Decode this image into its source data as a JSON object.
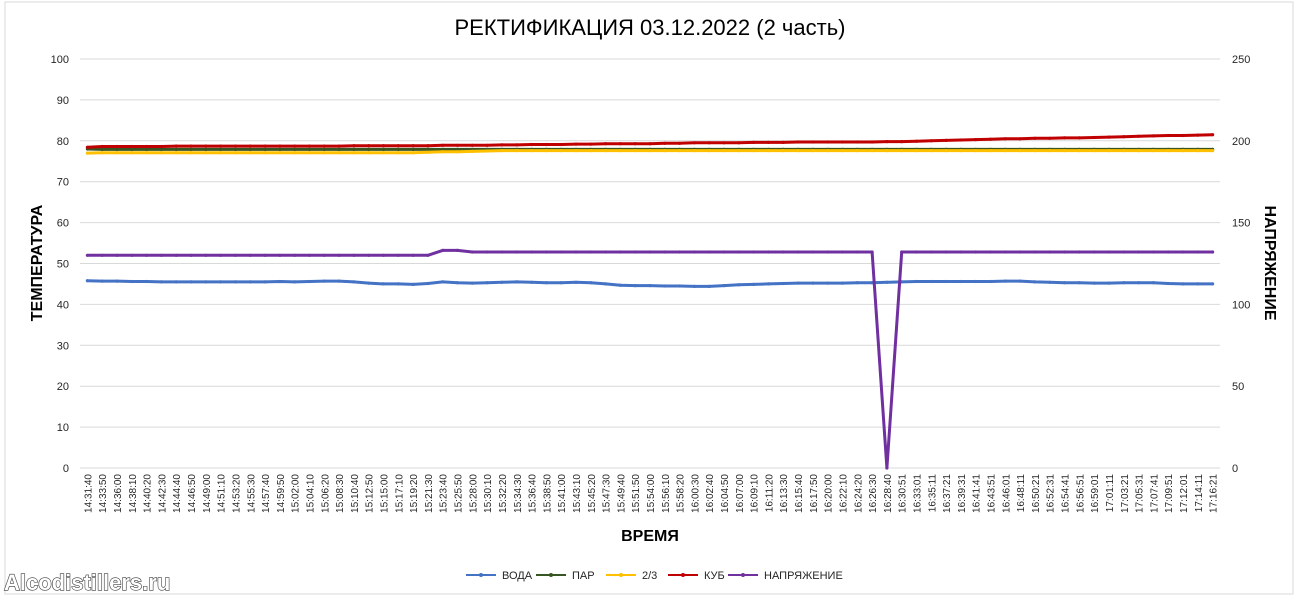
{
  "watermark": "Alcodistillers.ru",
  "chart_data": {
    "type": "line",
    "title": "РЕКТИФИКАЦИЯ 03.12.2022 (2 часть)",
    "xlabel": "ВРЕМЯ",
    "ylabel": "ТЕМПЕРАТУРА",
    "y2label": "НАПРЯЖЕНИЕ",
    "ylim": [
      0,
      100
    ],
    "y2lim": [
      0,
      250
    ],
    "yticks": [
      "0",
      "10",
      "20",
      "30",
      "40",
      "50",
      "60",
      "70",
      "80",
      "90",
      "100"
    ],
    "y2ticks": [
      "0",
      "50",
      "100",
      "150",
      "200",
      "250"
    ],
    "grid": true,
    "legend_position": "bottom",
    "categories": [
      "14:31:40",
      "14:33:50",
      "14:36:00",
      "14:38:10",
      "14:40:20",
      "14:42:30",
      "14:44:40",
      "14:46:50",
      "14:49:00",
      "14:51:10",
      "14:53:20",
      "14:55:30",
      "14:57:40",
      "14:59:50",
      "15:02:00",
      "15:04:10",
      "15:06:20",
      "15:08:30",
      "15:10:40",
      "15:12:50",
      "15:15:00",
      "15:17:10",
      "15:19:20",
      "15:21:30",
      "15:23:40",
      "15:25:50",
      "15:28:00",
      "15:30:10",
      "15:32:20",
      "15:34:30",
      "15:36:40",
      "15:38:50",
      "15:41:00",
      "15:43:10",
      "15:45:20",
      "15:47:30",
      "15:49:40",
      "15:51:50",
      "15:54:00",
      "15:56:10",
      "15:58:20",
      "16:00:30",
      "16:02:40",
      "16:04:50",
      "16:07:00",
      "16:09:10",
      "16:11:20",
      "16:13:30",
      "16:15:40",
      "16:17:50",
      "16:20:00",
      "16:22:10",
      "16:24:20",
      "16:26:30",
      "16:28:40",
      "16:30:51",
      "16:33:01",
      "16:35:11",
      "16:37:21",
      "16:39:31",
      "16:41:41",
      "16:43:51",
      "16:46:01",
      "16:48:11",
      "16:50:21",
      "16:52:31",
      "16:54:41",
      "16:56:51",
      "16:59:01",
      "17:01:11",
      "17:03:21",
      "17:05:31",
      "17:07:41",
      "17:09:51",
      "17:12:01",
      "17:14:11",
      "17:16:21"
    ],
    "series": [
      {
        "name": "ВОДА",
        "axis": "left",
        "color": "#4472c4",
        "values": [
          45.8,
          45.7,
          45.7,
          45.6,
          45.6,
          45.5,
          45.5,
          45.5,
          45.5,
          45.5,
          45.5,
          45.5,
          45.5,
          45.6,
          45.5,
          45.6,
          45.7,
          45.7,
          45.5,
          45.2,
          45.0,
          45.0,
          44.9,
          45.1,
          45.5,
          45.3,
          45.2,
          45.3,
          45.4,
          45.5,
          45.4,
          45.3,
          45.3,
          45.4,
          45.3,
          45.0,
          44.7,
          44.6,
          44.6,
          44.5,
          44.5,
          44.4,
          44.4,
          44.6,
          44.8,
          44.9,
          45.0,
          45.1,
          45.2,
          45.2,
          45.2,
          45.2,
          45.3,
          45.3,
          45.4,
          45.5,
          45.6,
          45.6,
          45.6,
          45.6,
          45.6,
          45.6,
          45.7,
          45.7,
          45.5,
          45.4,
          45.3,
          45.3,
          45.2,
          45.2,
          45.3,
          45.3,
          45.3,
          45.1,
          45.0,
          45.0,
          45.0
        ]
      },
      {
        "name": "ПАР",
        "axis": "left",
        "color": "#375623",
        "values": [
          78.0,
          77.9,
          77.9,
          77.9,
          77.9,
          77.9,
          77.9,
          77.9,
          77.9,
          77.9,
          77.9,
          77.9,
          77.9,
          77.9,
          77.9,
          77.9,
          77.9,
          77.9,
          77.9,
          77.9,
          77.9,
          77.9,
          77.9,
          77.9,
          77.9,
          77.9,
          77.9,
          77.9,
          77.9,
          77.9,
          77.9,
          77.9,
          77.9,
          77.9,
          77.9,
          77.9,
          77.9,
          77.9,
          77.9,
          77.9,
          77.9,
          77.9,
          77.9,
          77.9,
          77.9,
          77.9,
          77.9,
          77.9,
          77.9,
          77.9,
          77.9,
          77.9,
          77.9,
          77.9,
          77.9,
          77.9,
          77.9,
          77.9,
          77.9,
          77.9,
          77.9,
          77.9,
          77.9,
          77.9,
          77.9,
          77.9,
          77.9,
          77.9,
          77.9,
          77.9,
          77.9,
          77.9,
          77.9,
          77.9,
          77.9,
          77.9,
          77.9
        ]
      },
      {
        "name": "2/3",
        "axis": "left",
        "color": "#ffc000",
        "values": [
          77.0,
          77.1,
          77.1,
          77.1,
          77.1,
          77.1,
          77.1,
          77.1,
          77.1,
          77.1,
          77.1,
          77.1,
          77.1,
          77.1,
          77.1,
          77.1,
          77.1,
          77.1,
          77.1,
          77.1,
          77.1,
          77.1,
          77.1,
          77.2,
          77.3,
          77.3,
          77.4,
          77.5,
          77.6,
          77.6,
          77.6,
          77.6,
          77.6,
          77.6,
          77.6,
          77.6,
          77.6,
          77.6,
          77.6,
          77.6,
          77.6,
          77.6,
          77.6,
          77.6,
          77.6,
          77.6,
          77.6,
          77.6,
          77.6,
          77.6,
          77.6,
          77.6,
          77.6,
          77.6,
          77.6,
          77.6,
          77.6,
          77.6,
          77.6,
          77.6,
          77.6,
          77.6,
          77.6,
          77.6,
          77.6,
          77.6,
          77.6,
          77.6,
          77.6,
          77.6,
          77.6,
          77.6,
          77.6,
          77.6,
          77.6,
          77.6,
          77.6
        ]
      },
      {
        "name": "КУБ",
        "axis": "left",
        "color": "#c00000",
        "values": [
          78.4,
          78.6,
          78.6,
          78.6,
          78.6,
          78.6,
          78.7,
          78.7,
          78.7,
          78.7,
          78.7,
          78.7,
          78.7,
          78.7,
          78.7,
          78.7,
          78.7,
          78.7,
          78.8,
          78.8,
          78.8,
          78.8,
          78.8,
          78.8,
          78.9,
          78.9,
          78.9,
          78.9,
          79.0,
          79.0,
          79.1,
          79.1,
          79.1,
          79.2,
          79.2,
          79.3,
          79.3,
          79.3,
          79.3,
          79.4,
          79.4,
          79.5,
          79.5,
          79.5,
          79.5,
          79.6,
          79.6,
          79.6,
          79.7,
          79.7,
          79.7,
          79.7,
          79.7,
          79.7,
          79.8,
          79.8,
          79.9,
          80.0,
          80.1,
          80.2,
          80.3,
          80.4,
          80.5,
          80.5,
          80.6,
          80.6,
          80.7,
          80.7,
          80.8,
          80.9,
          81.0,
          81.1,
          81.2,
          81.3,
          81.3,
          81.4,
          81.5
        ]
      },
      {
        "name": "НАПРЯЖЕНИЕ",
        "axis": "right",
        "color": "#7030a0",
        "values": [
          130,
          130,
          130,
          130,
          130,
          130,
          130,
          130,
          130,
          130,
          130,
          130,
          130,
          130,
          130,
          130,
          130,
          130,
          130,
          130,
          130,
          130,
          130,
          130,
          133,
          133,
          132,
          132,
          132,
          132,
          132,
          132,
          132,
          132,
          132,
          132,
          132,
          132,
          132,
          132,
          132,
          132,
          132,
          132,
          132,
          132,
          132,
          132,
          132,
          132,
          132,
          132,
          132,
          132,
          0,
          132,
          132,
          132,
          132,
          132,
          132,
          132,
          132,
          132,
          132,
          132,
          132,
          132,
          132,
          132,
          132,
          132,
          132,
          132,
          132,
          132,
          132
        ]
      }
    ]
  }
}
